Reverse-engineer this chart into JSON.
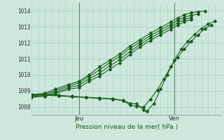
{
  "title": "",
  "xlabel": "Pression niveau de la mer( hPa )",
  "ylabel": "",
  "bg_color": "#cce8dc",
  "grid_color": "#a8cfc0",
  "line_color": "#1a5c1a",
  "ylim": [
    1007.5,
    1014.5
  ],
  "xlim": [
    0,
    28
  ],
  "xtick_positions": [
    7,
    21
  ],
  "xtick_labels": [
    "Jeu",
    "Ven"
  ],
  "ytick_positions": [
    1008,
    1009,
    1010,
    1011,
    1012,
    1013,
    1014
  ],
  "lines": [
    [
      0.0,
      1008.75,
      2.0,
      1008.85,
      3.5,
      1009.1,
      5.5,
      1009.4,
      7.0,
      1009.6,
      8.5,
      1010.0,
      10.0,
      1010.5,
      11.5,
      1010.9,
      13.0,
      1011.3,
      14.5,
      1011.8,
      16.0,
      1012.2,
      17.5,
      1012.6,
      19.0,
      1012.95,
      20.5,
      1013.3,
      21.5,
      1013.55,
      22.5,
      1013.75,
      23.5,
      1013.88,
      24.5,
      1013.95,
      25.5,
      1013.98
    ],
    [
      0.0,
      1008.7,
      2.0,
      1008.78,
      3.5,
      1009.0,
      5.5,
      1009.3,
      7.0,
      1009.5,
      8.5,
      1009.9,
      10.0,
      1010.3,
      11.5,
      1010.75,
      13.0,
      1011.15,
      14.5,
      1011.65,
      16.0,
      1012.05,
      17.5,
      1012.45,
      19.0,
      1012.8,
      20.5,
      1013.15,
      21.5,
      1013.4,
      22.5,
      1013.6,
      23.5,
      1013.72,
      24.5,
      1013.8
    ],
    [
      0.0,
      1008.65,
      2.0,
      1008.7,
      3.5,
      1008.9,
      5.5,
      1009.2,
      7.0,
      1009.35,
      8.5,
      1009.75,
      10.0,
      1010.1,
      11.5,
      1010.55,
      13.0,
      1010.95,
      14.5,
      1011.45,
      16.0,
      1011.9,
      17.5,
      1012.3,
      19.0,
      1012.65,
      20.5,
      1013.0,
      21.5,
      1013.25,
      22.5,
      1013.45,
      23.5,
      1013.58
    ],
    [
      0.0,
      1008.6,
      2.0,
      1008.65,
      3.5,
      1008.82,
      5.5,
      1009.1,
      7.0,
      1009.2,
      8.5,
      1009.6,
      10.0,
      1009.92,
      11.5,
      1010.35,
      13.0,
      1010.75,
      14.5,
      1011.28,
      16.0,
      1011.75,
      17.5,
      1012.15,
      19.0,
      1012.5,
      20.5,
      1012.85,
      21.5,
      1013.1,
      22.5,
      1013.32,
      23.5,
      1013.45
    ],
    [
      0.0,
      1008.72,
      2.0,
      1008.72,
      4.0,
      1008.68,
      6.0,
      1008.62,
      8.0,
      1008.58,
      10.0,
      1008.52,
      12.0,
      1008.48,
      13.5,
      1008.38,
      14.5,
      1008.12,
      15.5,
      1008.02,
      16.5,
      1007.98,
      17.5,
      1008.48,
      18.5,
      1009.05,
      19.5,
      1009.75,
      20.5,
      1010.5,
      21.5,
      1011.1,
      22.5,
      1011.62,
      23.5,
      1012.08,
      24.5,
      1012.5,
      25.5,
      1012.88,
      26.5,
      1013.12
    ],
    [
      0.0,
      1008.78,
      2.0,
      1008.76,
      4.0,
      1008.72,
      6.0,
      1008.66,
      8.0,
      1008.6,
      10.0,
      1008.55,
      12.0,
      1008.5,
      13.5,
      1008.4,
      14.5,
      1008.22,
      15.5,
      1008.18,
      16.5,
      1007.82,
      17.0,
      1007.72,
      18.0,
      1008.2,
      19.0,
      1009.1,
      20.0,
      1010.0,
      21.0,
      1010.9,
      22.0,
      1011.6,
      23.0,
      1012.1,
      24.0,
      1012.52,
      25.0,
      1012.9,
      26.0,
      1013.18,
      27.0,
      1013.35
    ]
  ]
}
